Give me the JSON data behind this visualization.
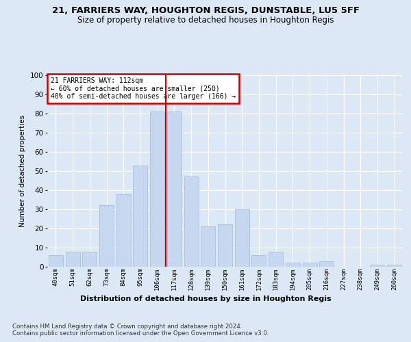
{
  "title1": "21, FARRIERS WAY, HOUGHTON REGIS, DUNSTABLE, LU5 5FF",
  "title2": "Size of property relative to detached houses in Houghton Regis",
  "xlabel": "Distribution of detached houses by size in Houghton Regis",
  "ylabel": "Number of detached properties",
  "categories": [
    "40sqm",
    "51sqm",
    "62sqm",
    "73sqm",
    "84sqm",
    "95sqm",
    "106sqm",
    "117sqm",
    "128sqm",
    "139sqm",
    "150sqm",
    "161sqm",
    "172sqm",
    "183sqm",
    "194sqm",
    "205sqm",
    "216sqm",
    "227sqm",
    "238sqm",
    "249sqm",
    "260sqm"
  ],
  "values": [
    6,
    8,
    8,
    32,
    38,
    53,
    81,
    81,
    47,
    21,
    22,
    30,
    6,
    8,
    2,
    2,
    3,
    0,
    0,
    1,
    1
  ],
  "bar_color": "#c5d8f0",
  "bar_edgecolor": "#a0b8d8",
  "vline_x": 6.5,
  "vline_color": "#cc0000",
  "annotation_text": "21 FARRIERS WAY: 112sqm\n← 60% of detached houses are smaller (250)\n40% of semi-detached houses are larger (166) →",
  "annotation_box_edgecolor": "#cc0000",
  "annotation_box_facecolor": "#ffffff",
  "bg_color": "#dce8f5",
  "plot_bg_color": "#dce8f5",
  "footer1": "Contains HM Land Registry data © Crown copyright and database right 2024.",
  "footer2": "Contains public sector information licensed under the Open Government Licence v3.0.",
  "ylim": [
    0,
    100
  ],
  "yticks": [
    0,
    10,
    20,
    30,
    40,
    50,
    60,
    70,
    80,
    90,
    100
  ]
}
